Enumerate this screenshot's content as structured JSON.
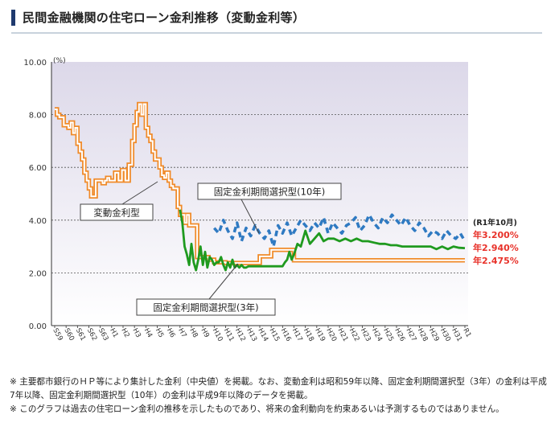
{
  "header": {
    "title": "民間金融機関の住宅ローン金利推移（変動金利等）"
  },
  "notes": [
    "※ 主要都市銀行のＨＰ等により集計した金利（中央値）を掲載。なお、変動金利は昭和59年以降、固定金利期間選択型（3年）の金利は平成7年以降、固定金利期間選択型（10年）の金利は平成9年以降のデータを掲載。",
    "※ このグラフは過去の住宅ローン金利の推移を示したものであり、将来の金利動向を約束あるいは予測するものではありません。"
  ],
  "chart_data": {
    "type": "line",
    "ylabel": "(%)",
    "ylim": [
      0,
      10
    ],
    "yticks": [
      "0.00",
      "2.00",
      "4.00",
      "6.00",
      "8.00",
      "10.00"
    ],
    "categories": [
      "S59",
      "S60",
      "S61",
      "S62",
      "S63",
      "H1",
      "H2",
      "H3",
      "H4",
      "H5",
      "H6",
      "H7",
      "H8",
      "H9",
      "H10",
      "H11",
      "H12",
      "H13",
      "H14",
      "H15",
      "H16",
      "H17",
      "H18",
      "H19",
      "H20",
      "H21",
      "H22",
      "H23",
      "H24",
      "H25",
      "H26",
      "H27",
      "H28",
      "H29",
      "H30",
      "H31",
      "R1"
    ],
    "grid": true,
    "colors": {
      "variable": "#f08a28",
      "fixed3": "#1f9a1f",
      "fixed10": "#2f7ac2",
      "rate_label": "#e8322a"
    },
    "series": [
      {
        "name": "変動金利型",
        "style": "double-orange",
        "x": [
          0,
          0.2,
          0.4,
          0.6,
          0.8,
          1.0,
          1.2,
          1.4,
          1.6,
          1.8,
          2.0,
          2.2,
          2.4,
          2.6,
          2.8,
          3.0,
          3.2,
          3.4,
          3.6,
          3.8,
          4.0,
          4.2,
          4.4,
          4.6,
          4.8,
          5.0,
          5.3,
          5.6,
          5.9,
          6.2,
          6.5,
          6.8,
          7.0,
          7.2,
          7.4,
          7.6,
          7.8,
          8.0,
          8.2,
          8.4,
          8.6,
          8.8,
          9.0,
          9.2,
          9.4,
          9.6,
          9.8,
          10.0,
          10.2,
          10.4,
          10.6,
          10.8,
          11.0,
          11.2,
          11.4,
          11.6,
          11.8,
          12.0,
          12.5,
          13.0,
          13.5,
          14.0,
          15,
          16,
          17,
          18,
          19,
          20,
          21,
          22,
          23,
          24,
          25,
          26,
          27,
          28,
          29,
          30,
          31,
          32,
          33,
          34,
          35,
          36
        ],
        "values": [
          8.2,
          8.0,
          7.9,
          7.9,
          7.6,
          7.6,
          7.5,
          7.7,
          7.3,
          7.5,
          6.9,
          6.6,
          6.3,
          5.8,
          5.5,
          5.2,
          4.9,
          4.9,
          5.5,
          5.5,
          5.5,
          5.4,
          5.5,
          5.6,
          5.5,
          5.5,
          5.8,
          5.5,
          5.9,
          5.5,
          6.1,
          7.0,
          7.6,
          8.1,
          8.4,
          8.0,
          8.4,
          7.5,
          7.2,
          7.0,
          6.6,
          6.3,
          6.3,
          6.0,
          5.7,
          5.6,
          5.8,
          5.5,
          5.3,
          5.2,
          5.2,
          4.5,
          4.2,
          4.2,
          3.9,
          4.2,
          3.8,
          3.8,
          2.6,
          2.6,
          2.5,
          2.4,
          2.375,
          2.375,
          2.375,
          2.625,
          2.875,
          2.875,
          2.475,
          2.475,
          2.475,
          2.475,
          2.475,
          2.475,
          2.475,
          2.475,
          2.475,
          2.475,
          2.475,
          2.475,
          2.475,
          2.475,
          2.475,
          2.475
        ]
      },
      {
        "name": "固定金利期間選択型(3年)",
        "style": "solid-green",
        "x": [
          11.0,
          11.2,
          11.4,
          11.6,
          11.8,
          12.0,
          12.2,
          12.4,
          12.6,
          12.8,
          13.0,
          13.2,
          13.4,
          13.6,
          13.8,
          14.0,
          14.2,
          14.4,
          14.6,
          14.8,
          15.0,
          15.2,
          15.4,
          15.6,
          15.8,
          16.0,
          16.2,
          16.4,
          16.6,
          16.8,
          17.0,
          17.2,
          17.4,
          17.6,
          17.8,
          18.0,
          18.2,
          18.4,
          18.6,
          18.8,
          19.0,
          19.2,
          19.4,
          19.6,
          19.8,
          20.0,
          20.2,
          20.4,
          20.6,
          20.8,
          21.0,
          21.3,
          21.6,
          22.0,
          22.4,
          22.8,
          23.2,
          23.6,
          24.0,
          24.5,
          25.0,
          25.5,
          26.0,
          26.5,
          27.0,
          27.5,
          28.0,
          28.5,
          29.0,
          29.5,
          30.0,
          30.5,
          31.0,
          31.5,
          32.0,
          32.5,
          33.0,
          33.5,
          34.0,
          34.5,
          35.0,
          35.5,
          36.0
        ],
        "values": [
          4.4,
          3.9,
          3.0,
          2.7,
          2.3,
          3.1,
          2.4,
          2.1,
          2.5,
          3.0,
          2.3,
          2.8,
          2.2,
          2.6,
          2.5,
          2.3,
          2.4,
          2.4,
          2.6,
          2.3,
          2.1,
          2.4,
          2.2,
          2.5,
          2.2,
          2.3,
          2.2,
          2.3,
          2.2,
          2.2,
          2.25,
          2.25,
          2.25,
          2.25,
          2.25,
          2.25,
          2.25,
          2.25,
          2.25,
          2.25,
          2.25,
          2.25,
          2.25,
          2.25,
          2.25,
          2.25,
          2.4,
          2.5,
          2.8,
          2.5,
          2.7,
          3.1,
          3.0,
          3.6,
          3.1,
          3.3,
          3.5,
          3.2,
          3.3,
          3.3,
          3.2,
          3.3,
          3.2,
          3.3,
          3.2,
          3.2,
          3.15,
          3.1,
          3.1,
          3.05,
          3.05,
          3.0,
          3.0,
          3.0,
          3.0,
          3.0,
          3.0,
          2.9,
          3.0,
          2.9,
          3.0,
          2.95,
          2.94
        ]
      },
      {
        "name": "固定金利期間選択型(10年)",
        "style": "dashed-blue",
        "x": [
          14.0,
          14.4,
          14.8,
          15.2,
          15.6,
          16.0,
          16.4,
          16.8,
          17.2,
          17.6,
          18.0,
          18.4,
          18.8,
          19.2,
          19.6,
          20.0,
          20.4,
          20.8,
          21.2,
          21.6,
          22.0,
          22.4,
          22.8,
          23.2,
          23.6,
          24.0,
          24.4,
          24.8,
          25.2,
          25.6,
          26.0,
          26.4,
          26.8,
          27.2,
          27.6,
          28.0,
          28.4,
          28.8,
          29.2,
          29.6,
          30.0,
          30.4,
          30.8,
          31.2,
          31.6,
          32.0,
          32.4,
          32.8,
          33.2,
          33.6,
          34.0,
          34.4,
          34.8,
          35.2,
          35.6,
          36.0
        ],
        "values": [
          3.7,
          3.5,
          4.0,
          3.6,
          3.3,
          3.9,
          3.2,
          3.7,
          3.4,
          3.8,
          3.5,
          3.3,
          3.6,
          3.0,
          3.8,
          3.5,
          3.9,
          3.4,
          3.7,
          4.0,
          3.8,
          3.6,
          3.9,
          3.7,
          4.1,
          3.5,
          3.9,
          3.7,
          3.5,
          3.8,
          3.9,
          4.1,
          3.6,
          3.8,
          4.2,
          3.9,
          3.7,
          4.1,
          3.9,
          4.2,
          4.0,
          3.8,
          4.1,
          3.8,
          3.6,
          3.9,
          3.7,
          3.4,
          3.6,
          3.5,
          3.3,
          3.6,
          3.4,
          3.3,
          3.5,
          3.2
        ]
      }
    ],
    "annotations": {
      "variable_label": "変動金利型",
      "fixed3_label": "固定金利期間選択型(3年)",
      "fixed10_label": "固定金利期間選択型(10年)",
      "date_label": "(R1年10月)",
      "rate_fixed10": "年3.200%",
      "rate_fixed3": "年2.940%",
      "rate_variable": "年2.475%"
    }
  }
}
